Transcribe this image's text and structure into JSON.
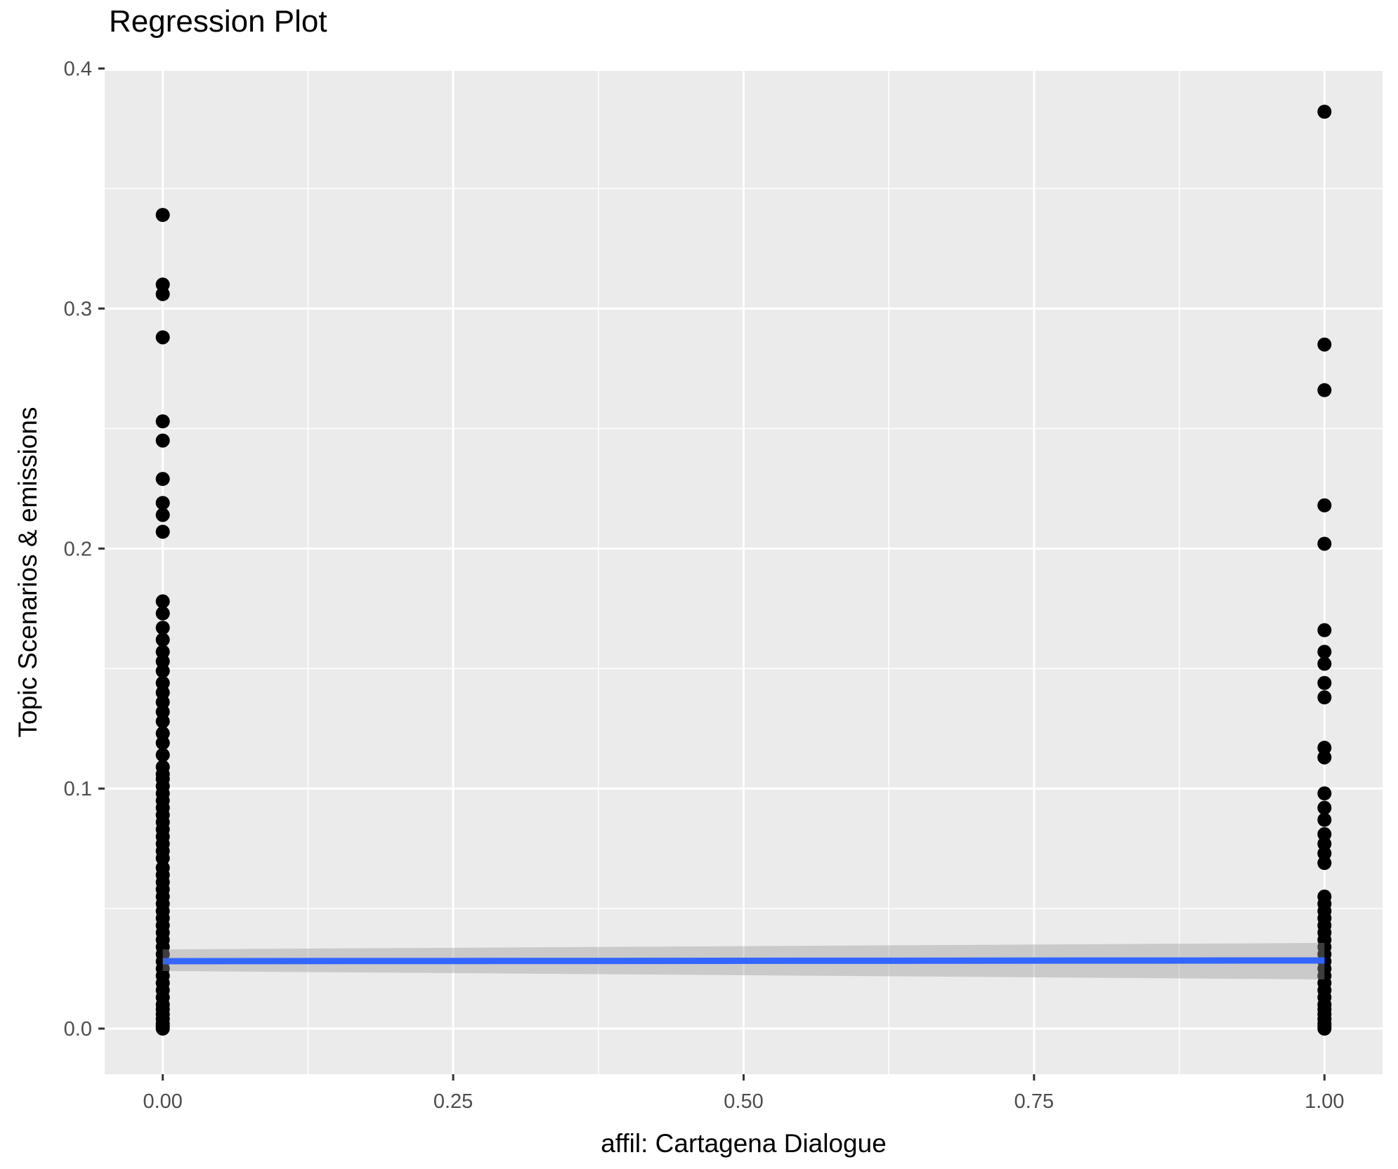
{
  "chart_data": {
    "type": "scatter",
    "title": "Regression Plot",
    "xlabel": "affil: Cartagena Dialogue",
    "ylabel": "Topic Scenarios & emissions",
    "xlim": [
      -0.05,
      1.05
    ],
    "ylim": [
      -0.019,
      0.399
    ],
    "grid": true,
    "legend_position": "none",
    "x_ticks": {
      "values": [
        0,
        0.25,
        0.5,
        0.75,
        1.0
      ],
      "labels": [
        "0.00",
        "0.25",
        "0.50",
        "0.75",
        "1.00"
      ]
    },
    "y_ticks": {
      "values": [
        0,
        0.1,
        0.2,
        0.3,
        0.4
      ],
      "labels": [
        "0.0",
        "0.1",
        "0.2",
        "0.3",
        "0.4"
      ]
    },
    "x_minor_ticks": [
      0.125,
      0.375,
      0.625,
      0.875
    ],
    "y_minor_ticks": [
      0.05,
      0.15,
      0.25,
      0.35
    ],
    "series": [
      {
        "name": "observations",
        "type": "points",
        "color": "#000000",
        "point_radius": 10,
        "columns": [
          {
            "x": 0,
            "y_values": [
              0.339,
              0.31,
              0.306,
              0.288,
              0.253,
              0.245,
              0.229,
              0.219,
              0.214,
              0.207,
              0.178,
              0.173,
              0.167,
              0.162,
              0.157,
              0.153,
              0.149,
              0.144,
              0.14,
              0.136,
              0.132,
              0.128,
              0.123,
              0.119,
              0.114,
              0.109,
              0.106,
              0.104,
              0.101,
              0.098,
              0.095,
              0.092,
              0.089,
              0.086,
              0.083,
              0.08,
              0.077,
              0.074,
              0.071,
              0.067,
              0.064,
              0.061,
              0.058,
              0.055,
              0.052,
              0.049,
              0.046,
              0.043,
              0.04,
              0.037,
              0.034,
              0.031,
              0.028,
              0.025,
              0.022,
              0.019,
              0.016,
              0.013,
              0.01,
              0.008,
              0.006,
              0.004,
              0.002,
              0.001,
              0.0
            ]
          },
          {
            "x": 1,
            "y_values": [
              0.382,
              0.285,
              0.266,
              0.218,
              0.202,
              0.166,
              0.157,
              0.152,
              0.144,
              0.138,
              0.117,
              0.113,
              0.098,
              0.092,
              0.087,
              0.081,
              0.077,
              0.073,
              0.069,
              0.055,
              0.052,
              0.049,
              0.046,
              0.043,
              0.04,
              0.037,
              0.034,
              0.031,
              0.028,
              0.025,
              0.022,
              0.019,
              0.016,
              0.013,
              0.01,
              0.008,
              0.006,
              0.004,
              0.002,
              0.001,
              0.0
            ]
          }
        ]
      },
      {
        "name": "regression-line",
        "type": "line",
        "color": "#3366FF",
        "line_width": 9,
        "x": [
          0,
          1
        ],
        "y": [
          0.0281,
          0.0284
        ],
        "ci_upper": [
          0.033,
          0.0357
        ],
        "ci_lower": [
          0.024,
          0.0205
        ],
        "ci_color": "#999999",
        "ci_opacity": 0.4
      }
    ],
    "theme": {
      "panel_background": "#EBEBEB",
      "grid_color": "#FFFFFF",
      "major_grid_width": 3,
      "minor_grid_width": 1.5,
      "tick_label_color": "#4D4D4D",
      "tick_mark_color": "#333333",
      "axis_title_color": "#000000",
      "title_color": "#000000"
    }
  }
}
